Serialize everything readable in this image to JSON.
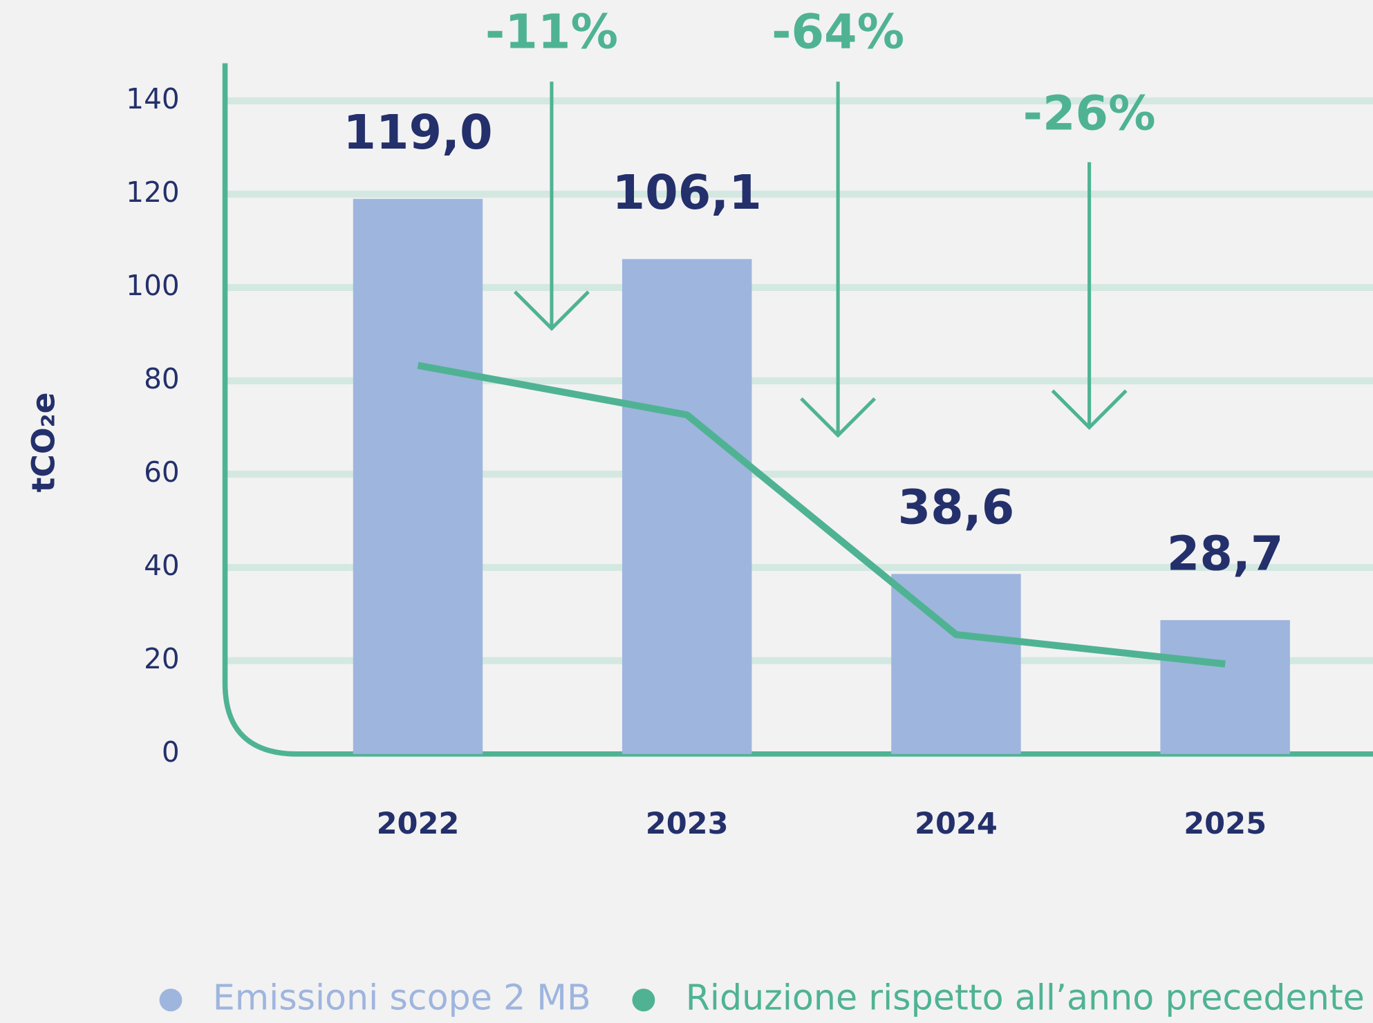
{
  "chart_data": {
    "type": "bar",
    "ylabel": "tCO₂e",
    "categories": [
      "2022",
      "2023",
      "2024",
      "2025"
    ],
    "series": [
      {
        "name": "Emissioni scope 2 MB",
        "color": "#9eb5de",
        "type": "bar",
        "values": [
          119.0,
          106.1,
          38.6,
          28.7
        ],
        "value_labels": [
          "119,0",
          "106,1",
          "38,6",
          "28,7"
        ]
      },
      {
        "name": "Riduzione rispetto all’anno precedente",
        "color": "#4fb393",
        "type": "line",
        "values": [
          83.3,
          72.7,
          25.6,
          19.3
        ]
      }
    ],
    "annotations": [
      "-11%",
      "-64%",
      "-26%"
    ],
    "ylim": [
      0,
      140
    ],
    "yticks": [
      0,
      20,
      40,
      60,
      80,
      100,
      120,
      140
    ],
    "grid": true,
    "legend": "bottom"
  }
}
